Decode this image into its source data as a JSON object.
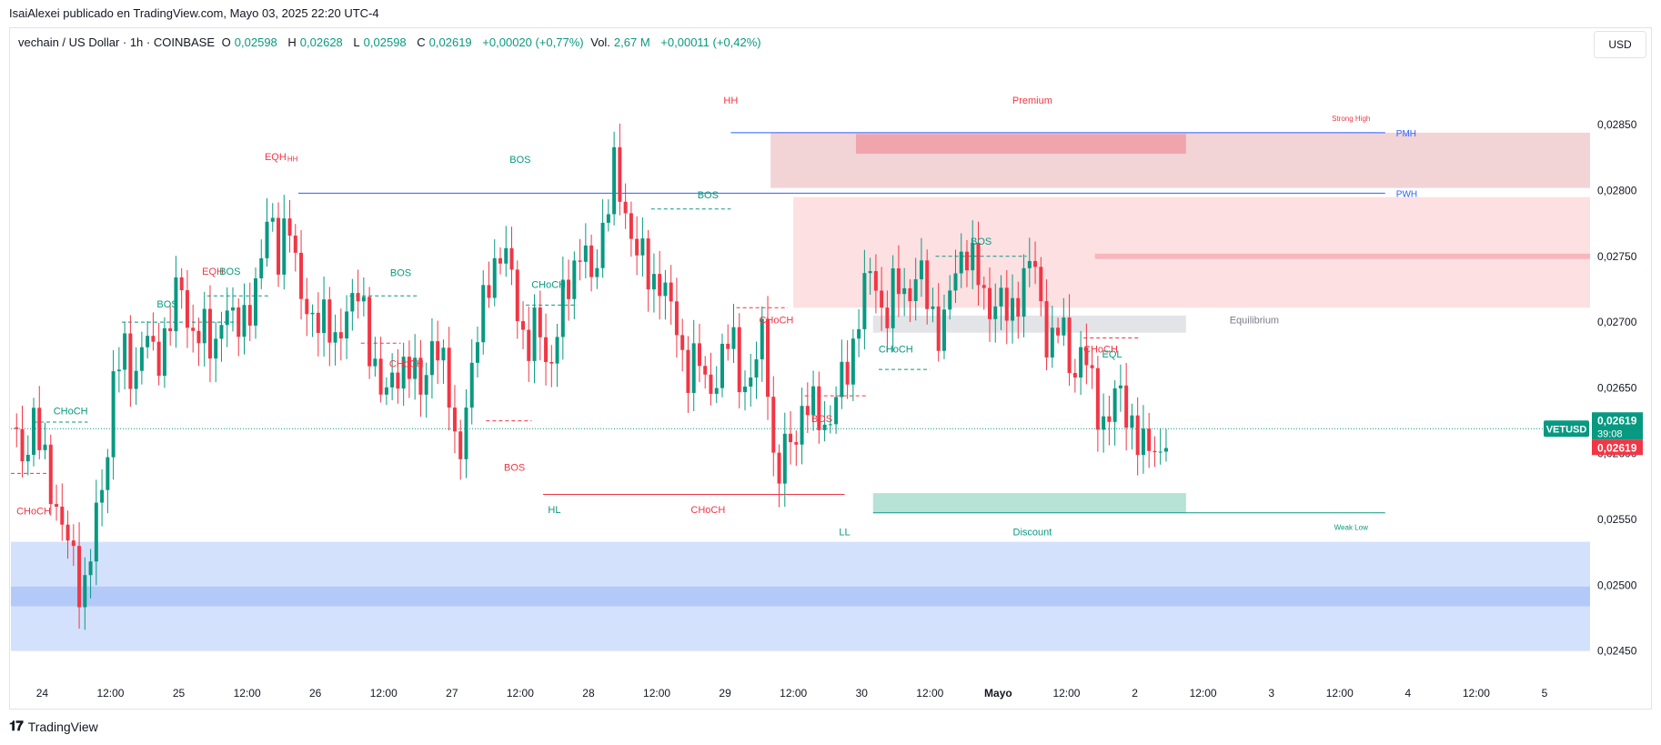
{
  "header": {
    "published": "IsaiAlexei publicado en TradingView.com, Mayo 03, 2025 22:20 UTC-4"
  },
  "legend": {
    "symbol": "vechain / US Dollar · 1h · COINBASE",
    "o_label": "O",
    "o": "0,02598",
    "h_label": "H",
    "h": "0,02628",
    "l_label": "L",
    "l": "0,02598",
    "c_label": "C",
    "c": "0,02619",
    "change": "+0,00020 (+0,77%)",
    "vol_label": "Vol.",
    "vol": "2,67 M",
    "vol_change": "+0,00011 (+0,42%)"
  },
  "currency_button": "USD",
  "footer": {
    "brand": "TradingView"
  },
  "colors": {
    "up": "#089981",
    "down": "#f23645",
    "blue": "#2962ff",
    "premium": "#f7b6bd",
    "discount": "#b2dfd3"
  },
  "chart_data": {
    "type": "candlestick",
    "symbol": "VETUSD",
    "y_ticks": [
      0.0285,
      0.028,
      0.0275,
      0.027,
      0.0265,
      0.026,
      0.0255,
      0.025,
      0.0245
    ],
    "y_tick_labels": [
      "0,02850",
      "0,02800",
      "0,02750",
      "0,02700",
      "0,02650",
      "0,02600",
      "0,02550",
      "0,02500",
      "0,02450"
    ],
    "x_tick_labels": [
      "24",
      "12:00",
      "25",
      "12:00",
      "26",
      "12:00",
      "27",
      "12:00",
      "28",
      "12:00",
      "29",
      "12:00",
      "30",
      "12:00",
      "Mayo",
      "12:00",
      "2",
      "12:00",
      "3",
      "12:00",
      "4",
      "12:00",
      "5"
    ],
    "x_tick_hours": [
      0,
      12,
      24,
      36,
      48,
      60,
      72,
      84,
      96,
      108,
      120,
      132,
      144,
      156,
      168,
      180,
      192,
      204,
      216,
      228,
      240,
      252,
      264
    ],
    "ylim": [
      0.02438,
      0.02902
    ],
    "xlim_hours": [
      -5.5,
      272
    ],
    "price_label": {
      "symbol": "VETUSD",
      "price": "0,02619",
      "countdown": "39:08",
      "price2": "0,02619",
      "value": 0.02619
    },
    "path": [
      [
        -5.5,
        0.0262
      ],
      [
        -3.5,
        0.02595
      ],
      [
        -1.5,
        0.02628
      ],
      [
        1,
        0.0258
      ],
      [
        3,
        0.02555
      ],
      [
        5,
        0.02525
      ],
      [
        7,
        0.0249
      ],
      [
        9,
        0.0254
      ],
      [
        11,
        0.0258
      ],
      [
        12.5,
        0.0266
      ],
      [
        14,
        0.0268
      ],
      [
        16,
        0.0265
      ],
      [
        18,
        0.027
      ],
      [
        20,
        0.0266
      ],
      [
        22,
        0.027
      ],
      [
        24,
        0.0273
      ],
      [
        26,
        0.0269
      ],
      [
        28,
        0.027
      ],
      [
        30,
        0.0267
      ],
      [
        32,
        0.0272
      ],
      [
        34,
        0.0269
      ],
      [
        36,
        0.0271
      ],
      [
        38,
        0.0273
      ],
      [
        40,
        0.0279
      ],
      [
        42,
        0.0274
      ],
      [
        43,
        0.0279
      ],
      [
        44,
        0.0275
      ],
      [
        46,
        0.0272
      ],
      [
        48,
        0.0269
      ],
      [
        50,
        0.0271
      ],
      [
        52,
        0.0268
      ],
      [
        54,
        0.0271
      ],
      [
        56,
        0.0274
      ],
      [
        57,
        0.0268
      ],
      [
        59,
        0.0265
      ],
      [
        61,
        0.0266
      ],
      [
        63,
        0.0265
      ],
      [
        65,
        0.0268
      ],
      [
        67,
        0.0264
      ],
      [
        69,
        0.0269
      ],
      [
        71,
        0.0267
      ],
      [
        72,
        0.0262
      ],
      [
        73,
        0.0258
      ],
      [
        75,
        0.0266
      ],
      [
        77,
        0.027
      ],
      [
        79,
        0.0274
      ],
      [
        81,
        0.0276
      ],
      [
        83,
        0.0272
      ],
      [
        85,
        0.0268
      ],
      [
        87,
        0.027
      ],
      [
        89,
        0.0266
      ],
      [
        91,
        0.0271
      ],
      [
        93,
        0.0273
      ],
      [
        95,
        0.0277
      ],
      [
        97,
        0.0271
      ],
      [
        98,
        0.0278
      ],
      [
        99,
        0.0276
      ],
      [
        100,
        0.0284
      ],
      [
        101,
        0.028
      ],
      [
        103,
        0.0277
      ],
      [
        105,
        0.0276
      ],
      [
        107,
        0.0272
      ],
      [
        109,
        0.0274
      ],
      [
        111,
        0.027
      ],
      [
        113,
        0.0266
      ],
      [
        115,
        0.0268
      ],
      [
        117,
        0.0264
      ],
      [
        119,
        0.0267
      ],
      [
        121,
        0.0269
      ],
      [
        123,
        0.0265
      ],
      [
        125,
        0.0266
      ],
      [
        127,
        0.027
      ],
      [
        128,
        0.0262
      ],
      [
        129,
        0.0257
      ],
      [
        130,
        0.026
      ],
      [
        132,
        0.0261
      ],
      [
        134,
        0.0264
      ],
      [
        136,
        0.0263
      ],
      [
        138,
        0.0262
      ],
      [
        140,
        0.0265
      ],
      [
        142,
        0.0267
      ],
      [
        144,
        0.0272
      ],
      [
        146,
        0.0274
      ],
      [
        148,
        0.027
      ],
      [
        150,
        0.0273
      ],
      [
        152,
        0.0272
      ],
      [
        154,
        0.0274
      ],
      [
        156,
        0.0271
      ],
      [
        158,
        0.0269
      ],
      [
        160,
        0.0273
      ],
      [
        162,
        0.0276
      ],
      [
        164,
        0.0274
      ],
      [
        166,
        0.0271
      ],
      [
        168,
        0.0272
      ],
      [
        170,
        0.027
      ],
      [
        172,
        0.0273
      ],
      [
        174,
        0.0275
      ],
      [
        176,
        0.027
      ],
      [
        177,
        0.0268
      ],
      [
        179,
        0.027
      ],
      [
        181,
        0.0266
      ],
      [
        183,
        0.0268
      ],
      [
        185,
        0.0264
      ],
      [
        187,
        0.0262
      ],
      [
        189,
        0.0265
      ],
      [
        191,
        0.0263
      ],
      [
        193,
        0.026
      ],
      [
        195,
        0.0261
      ],
      [
        197,
        0.02598
      ],
      [
        198,
        0.02619
      ]
    ],
    "zones": [
      {
        "name": "premium-zone-upper",
        "x": [
          128,
          272
        ],
        "y": [
          0.02802,
          0.02844
        ],
        "color": "#f2d3d6"
      },
      {
        "name": "premium-label-zone",
        "x": [
          143,
          201
        ],
        "y": [
          0.02828,
          0.02843
        ],
        "color": "#f0a5ad"
      },
      {
        "name": "supply-zone",
        "x": [
          132,
          272
        ],
        "y": [
          0.02711,
          0.02795
        ],
        "color": "#fde0e2"
      },
      {
        "name": "supply-zone-inner",
        "x": [
          185,
          272
        ],
        "y": [
          0.02748,
          0.02752
        ],
        "color": "#f7b6bd"
      },
      {
        "name": "equilibrium-zone",
        "x": [
          146,
          201
        ],
        "y": [
          0.02692,
          0.02705
        ],
        "color": "#e3e4e8"
      },
      {
        "name": "discount-zone",
        "x": [
          146,
          201
        ],
        "y": [
          0.02555,
          0.0257
        ],
        "color": "#b7e2d6"
      },
      {
        "name": "demand-zone-outer",
        "x": [
          -5.5,
          272
        ],
        "y": [
          0.0245,
          0.02533
        ],
        "color": "#d4e1fd"
      },
      {
        "name": "demand-zone-inner",
        "x": [
          -5.5,
          272
        ],
        "y": [
          0.02484,
          0.02499
        ],
        "color": "#b3c9f8"
      }
    ],
    "levels": [
      {
        "name": "strong-high-line",
        "x": [
          121,
          236
        ],
        "y": 0.02844,
        "color": "#2962ff",
        "label": "PMH"
      },
      {
        "name": "pwh-line",
        "x": [
          45,
          236
        ],
        "y": 0.02798,
        "color": "#2962ff",
        "label": "PWH"
      },
      {
        "name": "weak-low-line",
        "x": [
          146,
          236
        ],
        "y": 0.02555,
        "color": "#089981",
        "label": ""
      },
      {
        "name": "current-price-line",
        "x": [
          -5.5,
          272
        ],
        "y": 0.02619,
        "color": "#089981",
        "label": "",
        "dotted": true
      }
    ],
    "annotations": [
      {
        "text": "Premium",
        "h": 174,
        "y": 0.02866,
        "color": "#f23645"
      },
      {
        "text": "Strong High",
        "h": 230,
        "y": 0.02853,
        "color": "#f23645",
        "small": true
      },
      {
        "text": "HH",
        "h": 121,
        "y": 0.02866,
        "color": "#f23645"
      },
      {
        "text": "EQH",
        "h": 41,
        "y": 0.02823,
        "color": "#f23645"
      },
      {
        "text": "HH",
        "h": 44,
        "y": 0.02822,
        "color": "#f23645",
        "small": true
      },
      {
        "text": "BOS",
        "h": 84,
        "y": 0.02821,
        "color": "#089981"
      },
      {
        "text": "BOS",
        "h": 117,
        "y": 0.02794,
        "color": "#089981"
      },
      {
        "text": "EQH",
        "h": 30,
        "y": 0.02736,
        "color": "#f23645"
      },
      {
        "text": "BOS",
        "h": 33,
        "y": 0.02736,
        "color": "#089981"
      },
      {
        "text": "BOS",
        "h": 63,
        "y": 0.02735,
        "color": "#089981"
      },
      {
        "text": "BOS",
        "h": 22,
        "y": 0.02711,
        "color": "#089981"
      },
      {
        "text": "CHoCH",
        "h": 89,
        "y": 0.02726,
        "color": "#089981"
      },
      {
        "text": "CHoCH",
        "h": 64,
        "y": 0.02666,
        "color": "#f23645"
      },
      {
        "text": "CHoCH",
        "h": 129,
        "y": 0.02699,
        "color": "#f23645"
      },
      {
        "text": "BOS",
        "h": 165,
        "y": 0.02759,
        "color": "#089981"
      },
      {
        "text": "Equilibrium",
        "h": 213,
        "y": 0.02699,
        "color": "#787b86"
      },
      {
        "text": "CHoCH",
        "h": 186,
        "y": 0.02677,
        "color": "#f23645"
      },
      {
        "text": "EQL",
        "h": 188,
        "y": 0.02673,
        "color": "#089981"
      },
      {
        "text": "CHoCH",
        "h": 150,
        "y": 0.02677,
        "color": "#089981"
      },
      {
        "text": "CHoCH",
        "h": 5,
        "y": 0.0263,
        "color": "#089981"
      },
      {
        "text": "BOS",
        "h": 137,
        "y": 0.02624,
        "color": "#f23645"
      },
      {
        "text": "BOS",
        "h": 83,
        "y": 0.02587,
        "color": "#f23645"
      },
      {
        "text": "CHoCH",
        "h": -1.5,
        "y": 0.02554,
        "color": "#f23645"
      },
      {
        "text": "HL",
        "h": 90,
        "y": 0.02555,
        "color": "#089981"
      },
      {
        "text": "CHoCH",
        "h": 117,
        "y": 0.02555,
        "color": "#f23645"
      },
      {
        "text": "LL",
        "h": 141,
        "y": 0.02538,
        "color": "#089981"
      },
      {
        "text": "Discount",
        "h": 174,
        "y": 0.02538,
        "color": "#089981"
      },
      {
        "text": "Weak Low",
        "h": 230,
        "y": 0.02542,
        "color": "#089981",
        "small": true
      }
    ],
    "structure_lines": [
      {
        "x": [
          -1.5,
          8
        ],
        "y": 0.02624,
        "color": "#089981",
        "dash": true
      },
      {
        "x": [
          -5.5,
          1
        ],
        "y": 0.02585,
        "color": "#f23645",
        "dash": true
      },
      {
        "x": [
          14,
          35
        ],
        "y": 0.027,
        "color": "#089981",
        "dash": true
      },
      {
        "x": [
          29,
          40
        ],
        "y": 0.0272,
        "color": "#089981",
        "dash": true
      },
      {
        "x": [
          54,
          66
        ],
        "y": 0.0272,
        "color": "#089981",
        "dash": true
      },
      {
        "x": [
          56,
          63
        ],
        "y": 0.02684,
        "color": "#f23645",
        "dash": true
      },
      {
        "x": [
          85,
          94
        ],
        "y": 0.02713,
        "color": "#089981",
        "dash": true
      },
      {
        "x": [
          78,
          86
        ],
        "y": 0.02625,
        "color": "#f23645",
        "dash": true
      },
      {
        "x": [
          107,
          121
        ],
        "y": 0.02786,
        "color": "#089981",
        "dash": true
      },
      {
        "x": [
          122,
          131
        ],
        "y": 0.02711,
        "color": "#f23645",
        "dash": true
      },
      {
        "x": [
          134,
          145
        ],
        "y": 0.02644,
        "color": "#f23645",
        "dash": true
      },
      {
        "x": [
          147,
          156
        ],
        "y": 0.02664,
        "color": "#089981",
        "dash": true
      },
      {
        "x": [
          157,
          173
        ],
        "y": 0.0275,
        "color": "#089981",
        "dash": true
      },
      {
        "x": [
          183,
          193
        ],
        "y": 0.02688,
        "color": "#f23645",
        "dash": true
      },
      {
        "x": [
          88,
          141
        ],
        "y": 0.02569,
        "color": "#f23645",
        "dash": false
      }
    ]
  }
}
